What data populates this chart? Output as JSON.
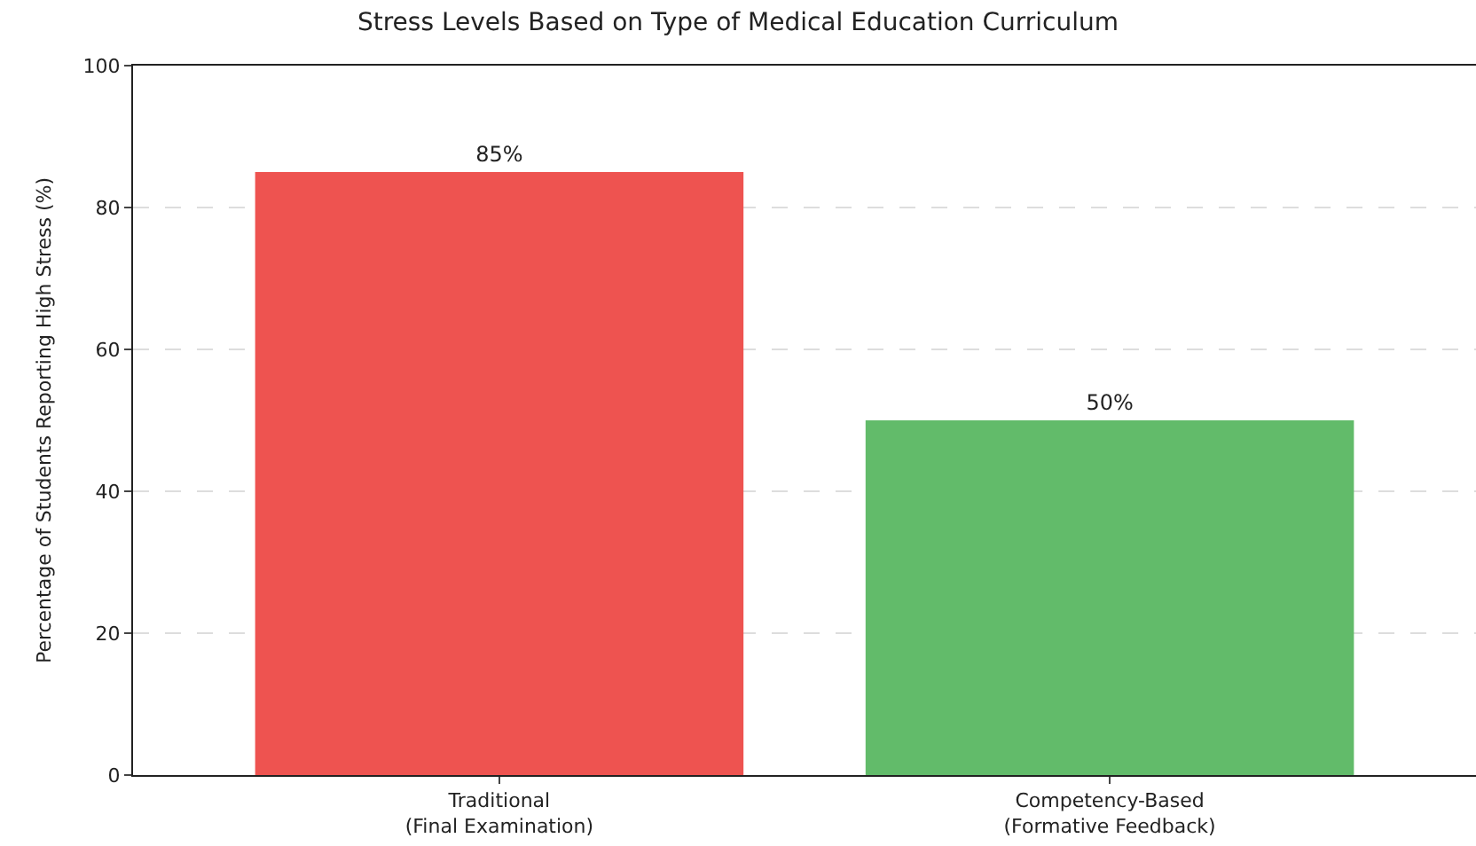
{
  "chart_data": {
    "type": "bar",
    "title": "Stress Levels Based on Type of Medical Education Curriculum",
    "ylabel": "Percentage of Students Reporting High Stress (%)",
    "categories": [
      "Traditional\n(Final Examination)",
      "Competency-Based\n(Formative Feedback)"
    ],
    "values": [
      85,
      50
    ],
    "colors": [
      "#ee5350",
      "#62bb6a"
    ],
    "value_labels": [
      "85%",
      "50%"
    ],
    "ylim": [
      0,
      100
    ],
    "yticks": [
      0,
      20,
      40,
      60,
      80,
      100
    ],
    "grid": "y"
  }
}
